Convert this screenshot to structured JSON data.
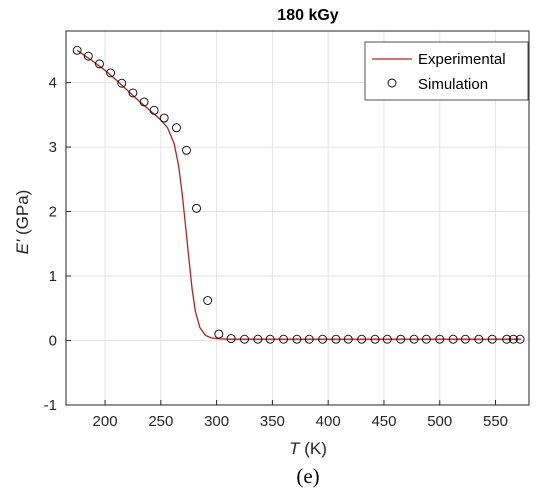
{
  "chart_data": {
    "type": "line",
    "title": "180 kGy",
    "xlabel_var": "T",
    "xlabel_unit": " (K)",
    "ylabel_var": "E'",
    "ylabel_unit": " (GPa)",
    "xlim": [
      165,
      580
    ],
    "ylim": [
      -1,
      4.8
    ],
    "xticks": [
      200,
      250,
      300,
      350,
      400,
      450,
      500,
      550
    ],
    "yticks": [
      -1,
      0,
      1,
      2,
      3,
      4
    ],
    "grid": true,
    "legend_position": "top-right",
    "panel_label": "(e)",
    "series": [
      {
        "name": "Experimental",
        "style": "line",
        "color": "#b22222",
        "x": [
          175,
          180,
          190,
          200,
          210,
          220,
          230,
          240,
          250,
          256,
          262,
          266,
          269,
          272,
          275,
          278,
          281,
          285,
          290,
          295,
          300,
          310,
          320,
          350,
          400,
          450,
          500,
          550,
          573
        ],
        "y": [
          4.5,
          4.44,
          4.32,
          4.19,
          4.04,
          3.88,
          3.72,
          3.57,
          3.42,
          3.3,
          3.05,
          2.7,
          2.3,
          1.8,
          1.3,
          0.8,
          0.45,
          0.2,
          0.08,
          0.04,
          0.03,
          0.02,
          0.02,
          0.02,
          0.02,
          0.02,
          0.02,
          0.02,
          0.02
        ]
      },
      {
        "name": "Simulation",
        "style": "marker",
        "color": "#000000",
        "x": [
          175,
          185,
          195,
          205,
          215,
          225,
          235,
          244,
          253,
          264,
          273,
          282,
          292,
          302,
          313,
          325,
          337,
          348,
          360,
          372,
          383,
          395,
          407,
          418,
          430,
          442,
          453,
          465,
          477,
          488,
          500,
          512,
          523,
          535,
          547,
          560,
          566,
          572
        ],
        "y": [
          4.5,
          4.41,
          4.29,
          4.15,
          3.99,
          3.84,
          3.7,
          3.57,
          3.45,
          3.3,
          2.95,
          2.05,
          0.62,
          0.1,
          0.03,
          0.02,
          0.02,
          0.02,
          0.02,
          0.02,
          0.02,
          0.02,
          0.02,
          0.02,
          0.02,
          0.02,
          0.02,
          0.02,
          0.02,
          0.02,
          0.02,
          0.02,
          0.02,
          0.02,
          0.02,
          0.02,
          0.02,
          0.02
        ]
      }
    ]
  }
}
